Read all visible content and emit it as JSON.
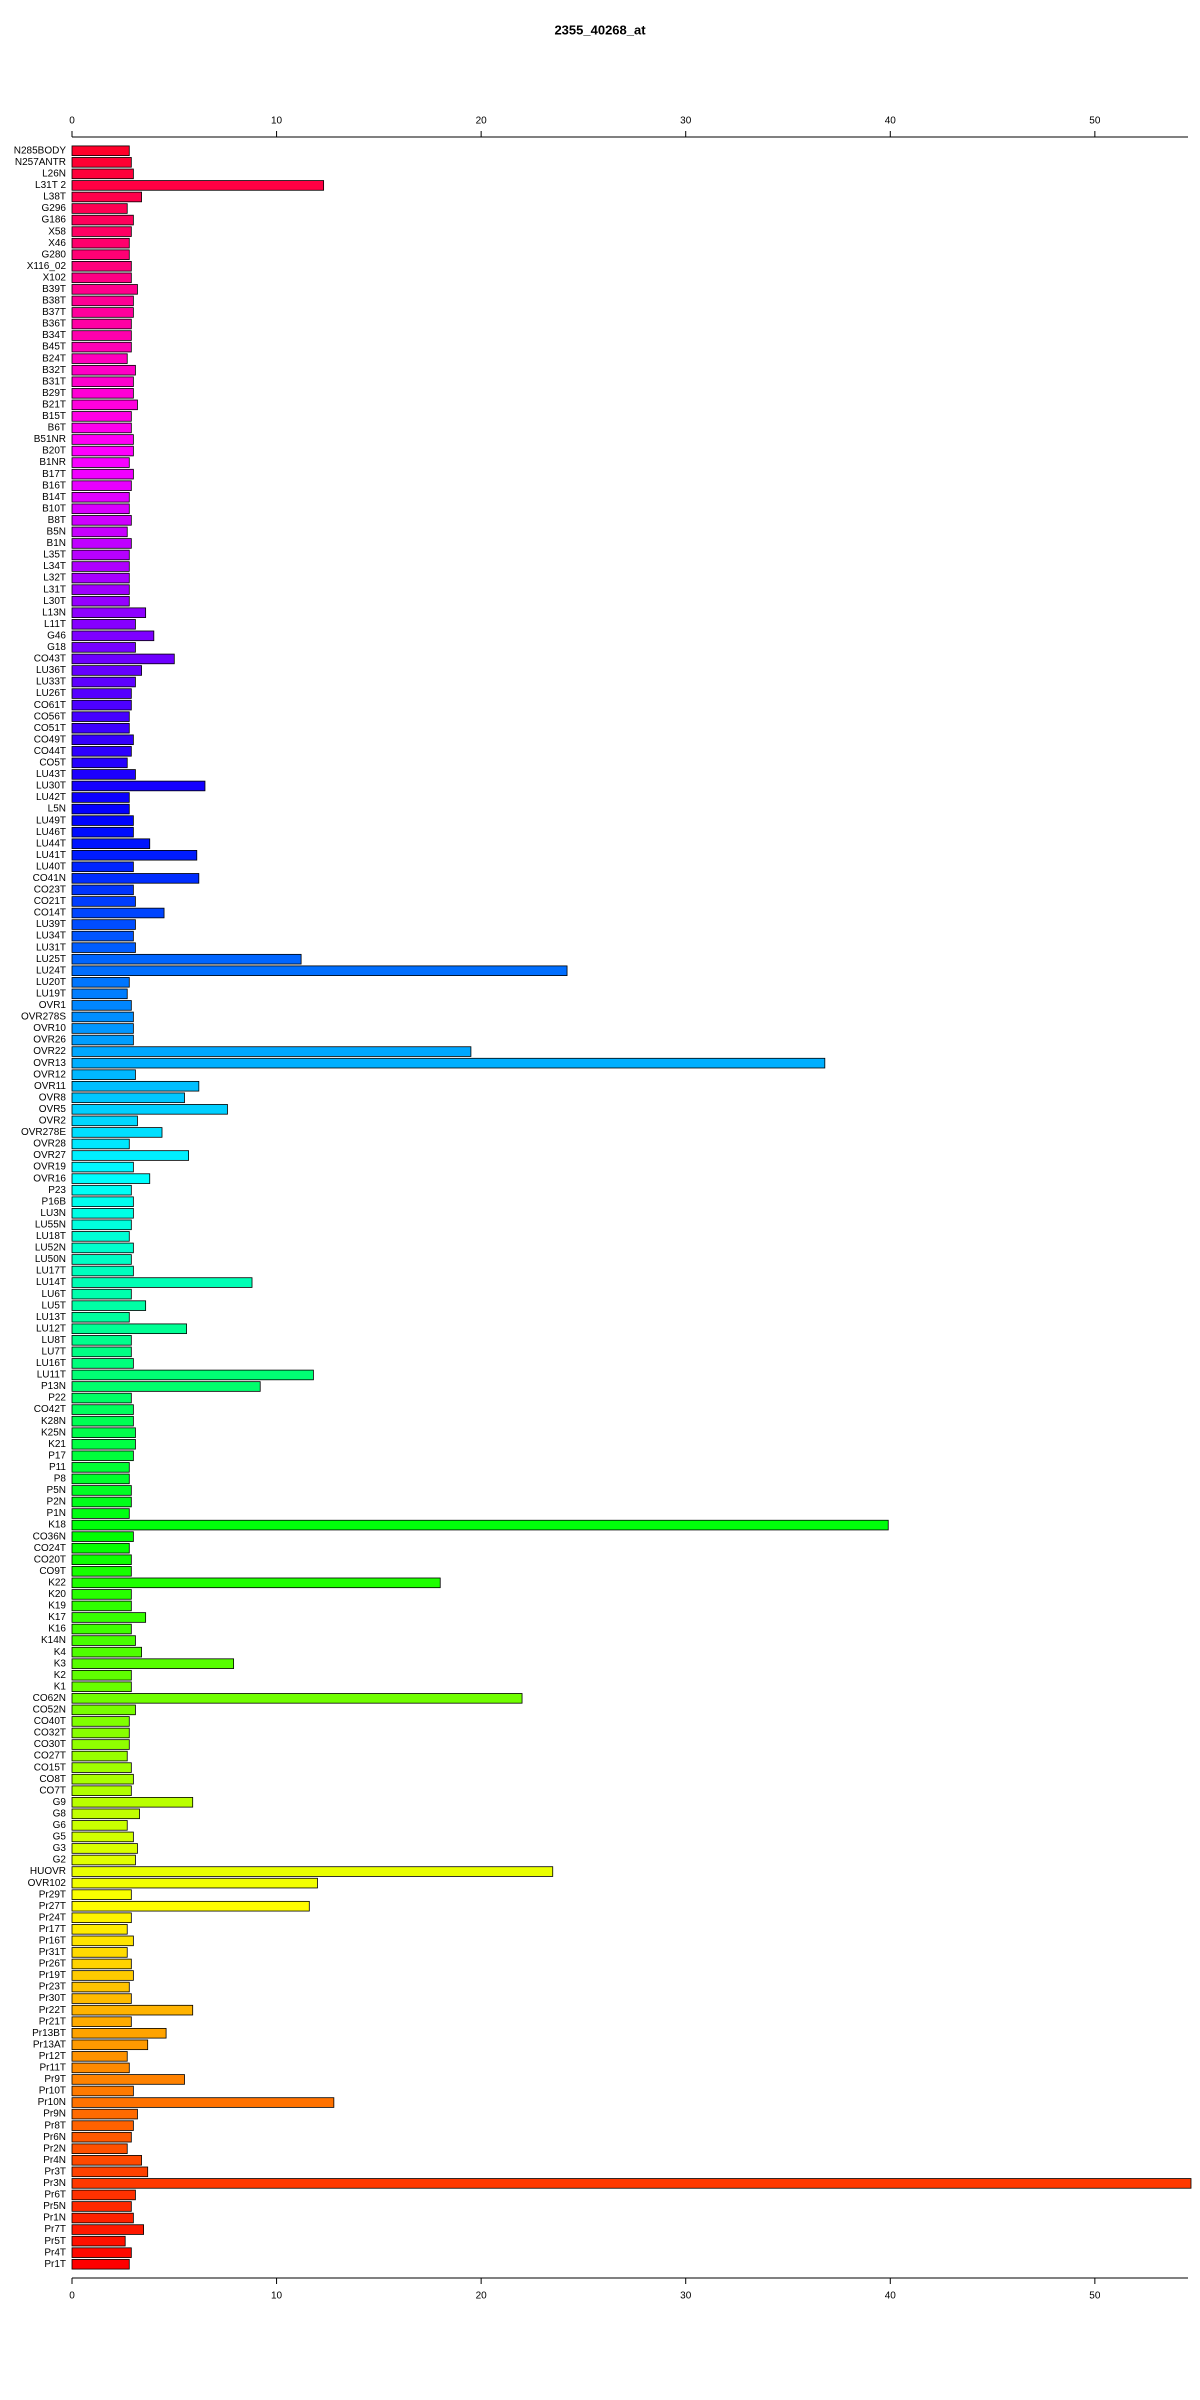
{
  "chart_data": {
    "type": "barh",
    "title": "2355_40268_at",
    "categories": [
      "N285BODY",
      "N257ANTR",
      "L26N",
      "L31T 2",
      "L38T",
      "G296",
      "G186",
      "X58",
      "X46",
      "G280",
      "X116_02",
      "X102",
      "B39T",
      "B38T",
      "B37T",
      "B36T",
      "B34T",
      "B45T",
      "B24T",
      "B32T",
      "B31T",
      "B29T",
      "B21T",
      "B15T",
      "B6T",
      "B51NR",
      "B20T",
      "B1NR",
      "B17T",
      "B16T",
      "B14T",
      "B10T",
      "B8T",
      "B5N",
      "B1N",
      "L35T",
      "L34T",
      "L32T",
      "L31T",
      "L30T",
      "L13N",
      "L11T",
      "G46",
      "G18",
      "CO43T",
      "LU36T",
      "LU33T",
      "LU26T",
      "CO61T",
      "CO56T",
      "CO51T",
      "CO49T",
      "CO44T",
      "CO5T",
      "LU43T",
      "LU30T",
      "LU42T",
      "L5N",
      "LU49T",
      "LU46T",
      "LU44T",
      "LU41T",
      "LU40T",
      "CO41N",
      "CO23T",
      "CO21T",
      "CO14T",
      "LU39T",
      "LU34T",
      "LU31T",
      "LU25T",
      "LU24T",
      "LU20T",
      "LU19T",
      "OVR1",
      "OVR278S",
      "OVR10",
      "OVR26",
      "OVR22",
      "OVR13",
      "OVR12",
      "OVR11",
      "OVR8",
      "OVR5",
      "OVR2",
      "OVR278E",
      "OVR28",
      "OVR27",
      "OVR19",
      "OVR16",
      "P23",
      "P16B",
      "LU3N",
      "LU55N",
      "LU18T",
      "LU52N",
      "LU50N",
      "LU17T",
      "LU14T",
      "LU6T",
      "LU5T",
      "LU13T",
      "LU12T",
      "LU8T",
      "LU7T",
      "LU16T",
      "LU11T",
      "P13N",
      "P22",
      "CO42T",
      "K28N",
      "K25N",
      "K21",
      "P17",
      "P11",
      "P8",
      "P5N",
      "P2N",
      "P1N",
      "K18",
      "CO36N",
      "CO24T",
      "CO20T",
      "CO9T",
      "K22",
      "K20",
      "K19",
      "K17",
      "K16",
      "K14N",
      "K4",
      "K3",
      "K2",
      "K1",
      "CO62N",
      "CO52N",
      "CO40T",
      "CO32T",
      "CO30T",
      "CO27T",
      "CO15T",
      "CO8T",
      "CO7T",
      "G9",
      "G8",
      "G6",
      "G5",
      "G3",
      "G2",
      "HUOVR",
      "OVR102",
      "Pr29T",
      "Pr27T",
      "Pr24T",
      "Pr17T",
      "Pr16T",
      "Pr31T",
      "Pr26T",
      "Pr19T",
      "Pr23T",
      "Pr30T",
      "Pr22T",
      "Pr21T",
      "Pr13BT",
      "Pr13AT",
      "Pr12T",
      "Pr11T",
      "Pr9T",
      "Pr10T",
      "Pr10N",
      "Pr9N",
      "Pr8T",
      "Pr6N",
      "Pr2N",
      "Pr4N",
      "Pr3T",
      "Pr3N",
      "Pr6T",
      "Pr5N",
      "Pr1N",
      "Pr7T",
      "Pr5T",
      "Pr4T",
      "Pr1T"
    ],
    "values": [
      2.8,
      2.9,
      3.0,
      12.3,
      3.4,
      2.7,
      3.0,
      2.9,
      2.8,
      2.8,
      2.9,
      2.9,
      3.2,
      3.0,
      3.0,
      2.9,
      2.9,
      2.9,
      2.7,
      3.1,
      3.0,
      3.0,
      3.2,
      2.9,
      2.9,
      3.0,
      3.0,
      2.8,
      3.0,
      2.9,
      2.8,
      2.8,
      2.9,
      2.7,
      2.9,
      2.8,
      2.8,
      2.8,
      2.8,
      2.8,
      3.6,
      3.1,
      4.0,
      3.1,
      5.0,
      3.4,
      3.1,
      2.9,
      2.9,
      2.8,
      2.8,
      3.0,
      2.9,
      2.7,
      3.1,
      6.5,
      2.8,
      2.8,
      3.0,
      3.0,
      3.8,
      6.1,
      3.0,
      6.2,
      3.0,
      3.1,
      4.5,
      3.1,
      3.0,
      3.1,
      11.2,
      24.2,
      2.8,
      2.7,
      2.9,
      3.0,
      3.0,
      3.0,
      19.5,
      36.8,
      3.1,
      6.2,
      5.5,
      7.6,
      3.2,
      4.4,
      2.8,
      5.7,
      3.0,
      3.8,
      2.9,
      3.0,
      3.0,
      2.9,
      2.8,
      3.0,
      2.9,
      3.0,
      8.8,
      2.9,
      3.6,
      2.8,
      5.6,
      2.9,
      2.9,
      3.0,
      11.8,
      9.2,
      2.9,
      3.0,
      3.0,
      3.1,
      3.1,
      3.0,
      2.8,
      2.8,
      2.9,
      2.9,
      2.8,
      39.9,
      3.0,
      2.8,
      2.9,
      2.9,
      18.0,
      2.9,
      2.9,
      3.6,
      2.9,
      3.1,
      3.4,
      7.9,
      2.9,
      2.9,
      22.0,
      3.1,
      2.8,
      2.8,
      2.8,
      2.7,
      2.9,
      3.0,
      2.9,
      5.9,
      3.3,
      2.7,
      3.0,
      3.2,
      3.1,
      23.5,
      12.0,
      2.9,
      11.6,
      2.9,
      2.7,
      3.0,
      2.7,
      2.9,
      3.0,
      2.8,
      2.9,
      5.9,
      2.9,
      4.6,
      3.7,
      2.7,
      2.8,
      5.5,
      3.0,
      12.8,
      3.2,
      3.0,
      2.9,
      2.7,
      3.4,
      3.7,
      54.7,
      3.1,
      2.9,
      3.0,
      3.5,
      2.6,
      2.9,
      2.8
    ],
    "xlim": [
      0,
      54.7
    ],
    "xticks": [
      0,
      10,
      20,
      30,
      40,
      50
    ],
    "hue_range": [
      350,
      0
    ],
    "bar_outline": "#000000"
  }
}
